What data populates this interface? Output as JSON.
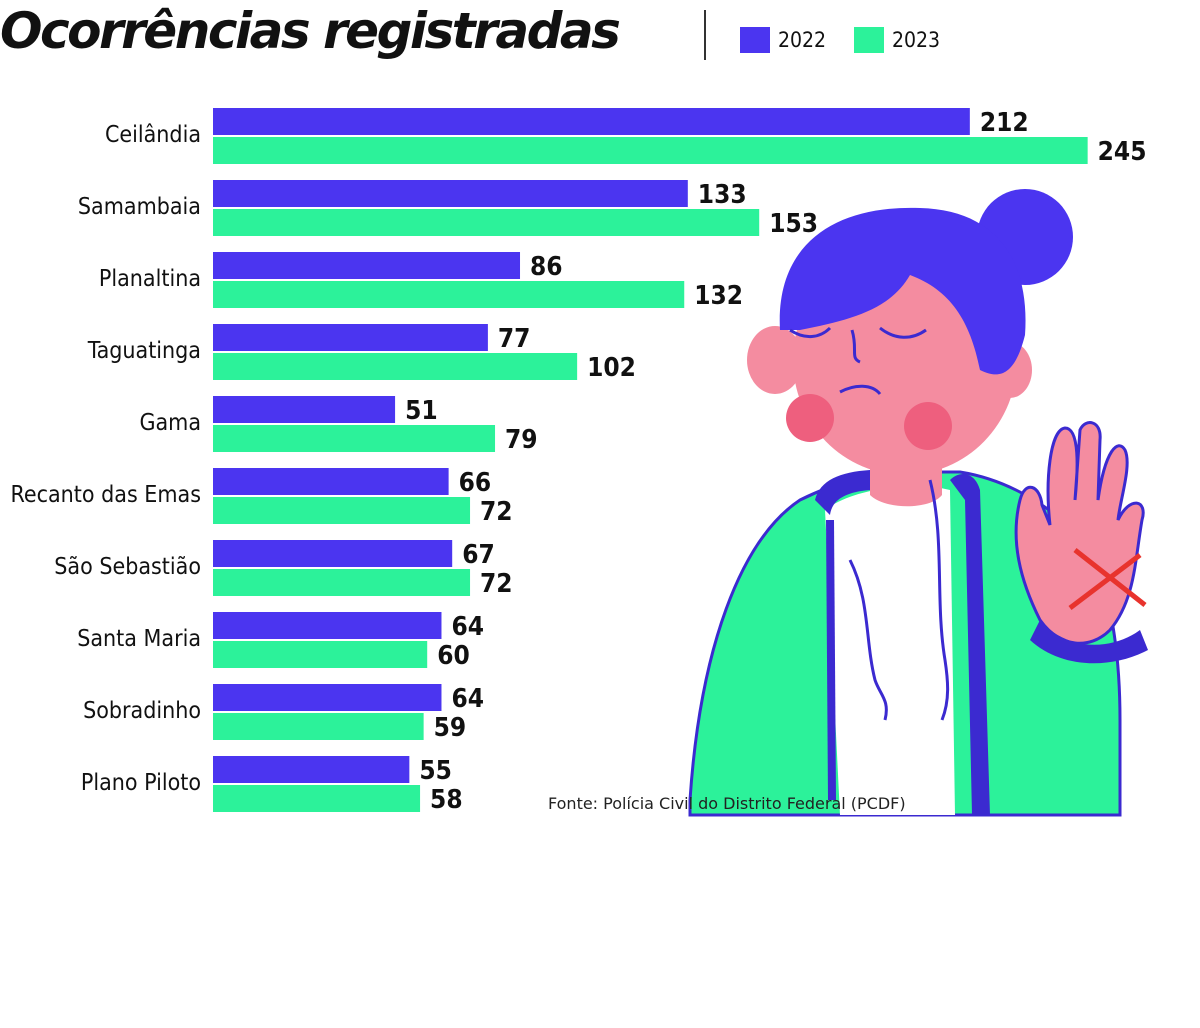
{
  "title": "Ocorrências registradas",
  "legend": [
    {
      "label": "2022",
      "color": "#4b35f0"
    },
    {
      "label": "2023",
      "color": "#2cf29a"
    }
  ],
  "source": "Fonte: Polícia Civil do Distrito Federal (PCDF)",
  "colors": {
    "series_2022": "#4b35f0",
    "series_2023": "#2cf29a"
  },
  "chart_data": {
    "type": "bar",
    "orientation": "horizontal",
    "title": "Ocorrências registradas",
    "categories": [
      "Ceilândia",
      "Samambaia",
      "Planaltina",
      "Taguatinga",
      "Gama",
      "Recanto das Emas",
      "São Sebastião",
      "Santa Maria",
      "Sobradinho",
      "Plano Piloto"
    ],
    "series": [
      {
        "name": "2022",
        "color": "#4b35f0",
        "values": [
          212,
          133,
          86,
          77,
          51,
          66,
          67,
          64,
          64,
          55
        ]
      },
      {
        "name": "2023",
        "color": "#2cf29a",
        "values": [
          245,
          153,
          132,
          102,
          79,
          72,
          72,
          60,
          59,
          58
        ]
      }
    ],
    "xlim": [
      0,
      245
    ],
    "grid": false,
    "legend_position": "top"
  }
}
